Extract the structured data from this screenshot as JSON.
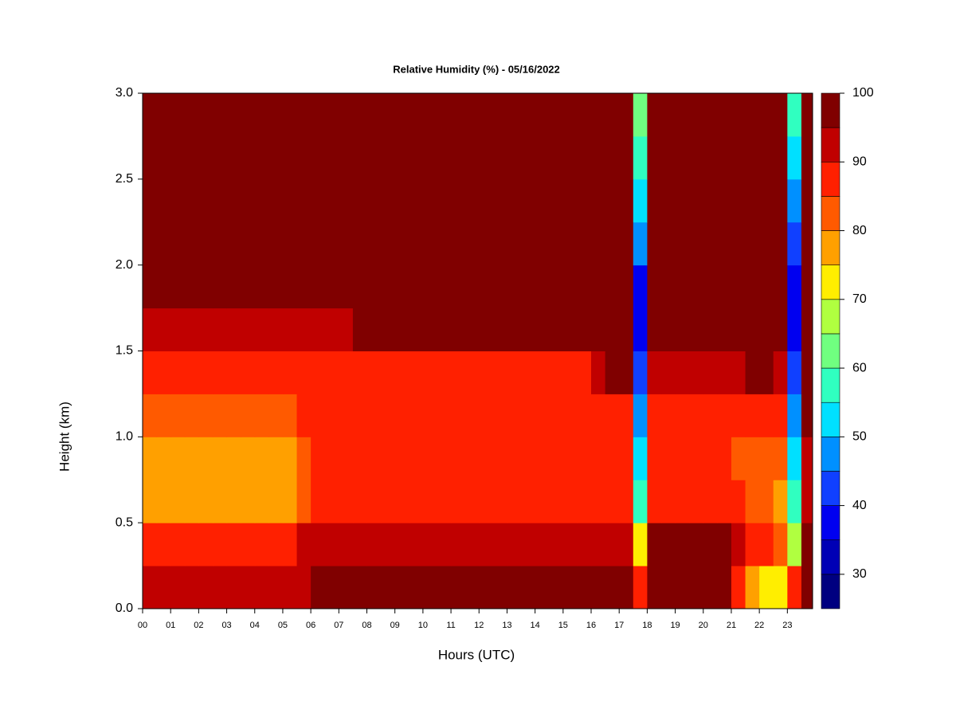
{
  "chart_data": {
    "type": "heatmap",
    "title": "Relative Humidity (%) - 05/16/2022",
    "x_label": "Hours (UTC)",
    "y_label": "Height (km)",
    "xlim": [
      0,
      23.9
    ],
    "ylim": [
      0,
      3
    ],
    "xticks": [
      {
        "value": 0,
        "label": "00"
      },
      {
        "value": 1,
        "label": "01"
      },
      {
        "value": 2,
        "label": "02"
      },
      {
        "value": 3,
        "label": "03"
      },
      {
        "value": 4,
        "label": "04"
      },
      {
        "value": 5,
        "label": "05"
      },
      {
        "value": 6,
        "label": "06"
      },
      {
        "value": 7,
        "label": "07"
      },
      {
        "value": 8,
        "label": "08"
      },
      {
        "value": 9,
        "label": "09"
      },
      10,
      11,
      12,
      13,
      14,
      15,
      16,
      17,
      18,
      19,
      20,
      21,
      22,
      23
    ],
    "yticks": [
      {
        "value": 0,
        "label": "0.0"
      },
      0.5,
      {
        "value": 1,
        "label": "1.0"
      },
      1.5,
      {
        "value": 2,
        "label": "2.0"
      },
      2.5,
      {
        "value": 3,
        "label": "3.0"
      }
    ],
    "x": [
      0,
      0.5,
      1,
      1.5,
      2,
      2.5,
      3,
      3.5,
      4,
      4.5,
      5,
      5.5,
      6,
      6.5,
      7,
      7.5,
      8,
      8.5,
      9,
      9.5,
      10,
      10.5,
      11,
      11.5,
      12,
      12.5,
      13,
      13.5,
      14,
      14.5,
      15,
      15.5,
      16,
      16.5,
      17,
      17.5,
      18,
      18.5,
      19,
      19.5,
      20,
      20.5,
      21,
      21.5,
      22,
      22.5,
      23,
      23.5
    ],
    "y": [
      0,
      0.25,
      0.5,
      0.75,
      1,
      1.25,
      1.5,
      1.75,
      2,
      2.25,
      2.5,
      2.75
    ],
    "values": [
      [
        92,
        92,
        92,
        92,
        92,
        92,
        92,
        92,
        92,
        92,
        94,
        94,
        97,
        97,
        97,
        97,
        97,
        97,
        97,
        97,
        97,
        97,
        97,
        97,
        97,
        97,
        97,
        97,
        97,
        97,
        97,
        97,
        97,
        97,
        97,
        85,
        97,
        97,
        97,
        97,
        97,
        97,
        88,
        78,
        72,
        70,
        85,
        95
      ],
      [
        85,
        85,
        85,
        85,
        85,
        85,
        85,
        85,
        85,
        85,
        88,
        92,
        94,
        94,
        94,
        94,
        94,
        94,
        94,
        94,
        94,
        94,
        94,
        94,
        94,
        94,
        94,
        94,
        94,
        94,
        94,
        94,
        94,
        94,
        94,
        70,
        95,
        95,
        95,
        95,
        95,
        95,
        92,
        88,
        85,
        82,
        65,
        95
      ],
      [
        78,
        78,
        78,
        78,
        78,
        78,
        78,
        78,
        78,
        78,
        78,
        84,
        85,
        85,
        85,
        88,
        88,
        88,
        88,
        88,
        88,
        88,
        88,
        88,
        88,
        88,
        88,
        88,
        88,
        88,
        88,
        88,
        88,
        88,
        88,
        55,
        88,
        88,
        88,
        88,
        88,
        88,
        86,
        82,
        80,
        78,
        55,
        90
      ],
      [
        76,
        76,
        76,
        76,
        76,
        76,
        76,
        76,
        76,
        76,
        77,
        80,
        85,
        85,
        85,
        87,
        87,
        87,
        87,
        87,
        87,
        87,
        87,
        87,
        87,
        87,
        87,
        87,
        87,
        87,
        87,
        87,
        87,
        87,
        87,
        50,
        86,
        86,
        86,
        86,
        86,
        86,
        84,
        82,
        80,
        80,
        50,
        92
      ],
      [
        84,
        84,
        84,
        84,
        84,
        84,
        84,
        84,
        84,
        84,
        84,
        86,
        88,
        88,
        88,
        88,
        88,
        88,
        88,
        88,
        88,
        88,
        88,
        88,
        88,
        88,
        88,
        88,
        88,
        88,
        88,
        88,
        88,
        88,
        88,
        45,
        88,
        88,
        88,
        88,
        88,
        88,
        88,
        88,
        86,
        86,
        45,
        95
      ],
      [
        88,
        88,
        88,
        88,
        88,
        88,
        88,
        88,
        88,
        88,
        88,
        88,
        88,
        88,
        88,
        88,
        88,
        88,
        88,
        88,
        88,
        88,
        88,
        88,
        88,
        88,
        88,
        88,
        88,
        88,
        88,
        88,
        90,
        96,
        97,
        42,
        90,
        90,
        90,
        90,
        90,
        90,
        94,
        95,
        95,
        93,
        42,
        97
      ],
      [
        92,
        92,
        92,
        92,
        92,
        92,
        92,
        92,
        92,
        92,
        92,
        92,
        92,
        92,
        92,
        97,
        97,
        97,
        97,
        97,
        97,
        97,
        97,
        97,
        97,
        97,
        97,
        97,
        97,
        97,
        97,
        97,
        97,
        97,
        97,
        38,
        95,
        95,
        95,
        95,
        95,
        95,
        97,
        97,
        97,
        97,
        38,
        97
      ],
      [
        96,
        96,
        96,
        96,
        96,
        96,
        96,
        96,
        96,
        96,
        96,
        96,
        98,
        98,
        98,
        98,
        98,
        98,
        98,
        98,
        98,
        98,
        98,
        98,
        98,
        98,
        98,
        98,
        98,
        98,
        98,
        98,
        98,
        98,
        98,
        38,
        98,
        98,
        98,
        98,
        98,
        98,
        98,
        98,
        98,
        98,
        38,
        98
      ],
      [
        98,
        98,
        98,
        98,
        98,
        98,
        98,
        98,
        98,
        98,
        98,
        98,
        98,
        98,
        98,
        98,
        98,
        98,
        98,
        98,
        98,
        98,
        98,
        98,
        98,
        98,
        98,
        98,
        98,
        98,
        98,
        98,
        98,
        98,
        98,
        45,
        98,
        98,
        98,
        98,
        98,
        98,
        98,
        98,
        98,
        98,
        42,
        98
      ],
      [
        98,
        98,
        98,
        98,
        98,
        98,
        98,
        98,
        98,
        98,
        98,
        98,
        98,
        98,
        98,
        98,
        98,
        98,
        98,
        98,
        98,
        98,
        98,
        98,
        98,
        98,
        98,
        98,
        98,
        98,
        98,
        98,
        98,
        98,
        98,
        50,
        98,
        98,
        98,
        98,
        98,
        98,
        98,
        98,
        98,
        98,
        48,
        98
      ],
      [
        98,
        98,
        98,
        98,
        98,
        98,
        98,
        98,
        98,
        98,
        98,
        98,
        98,
        98,
        98,
        98,
        98,
        98,
        98,
        98,
        98,
        98,
        98,
        98,
        98,
        98,
        98,
        98,
        98,
        98,
        98,
        98,
        98,
        98,
        98,
        55,
        98,
        98,
        98,
        98,
        98,
        98,
        98,
        98,
        98,
        98,
        52,
        98
      ],
      [
        98,
        98,
        98,
        98,
        98,
        98,
        98,
        98,
        98,
        98,
        98,
        98,
        98,
        98,
        98,
        98,
        98,
        98,
        98,
        98,
        98,
        98,
        98,
        98,
        98,
        98,
        98,
        98,
        98,
        98,
        98,
        98,
        98,
        98,
        98,
        62,
        98,
        98,
        98,
        98,
        98,
        98,
        98,
        98,
        98,
        98,
        58,
        98
      ]
    ],
    "colorbar": {
      "levels": [
        25,
        30,
        35,
        40,
        45,
        50,
        55,
        60,
        65,
        70,
        75,
        80,
        85,
        90,
        95,
        100
      ],
      "colors": [
        "#000080",
        "#0000b5",
        "#0000f0",
        "#1040ff",
        "#0090ff",
        "#00e0ff",
        "#30ffc0",
        "#70ff80",
        "#b0ff40",
        "#ffee00",
        "#ffa000",
        "#ff5a00",
        "#ff2000",
        "#c00000",
        "#800000"
      ],
      "ticks": [
        30,
        40,
        50,
        60,
        70,
        80,
        90,
        100
      ]
    }
  }
}
